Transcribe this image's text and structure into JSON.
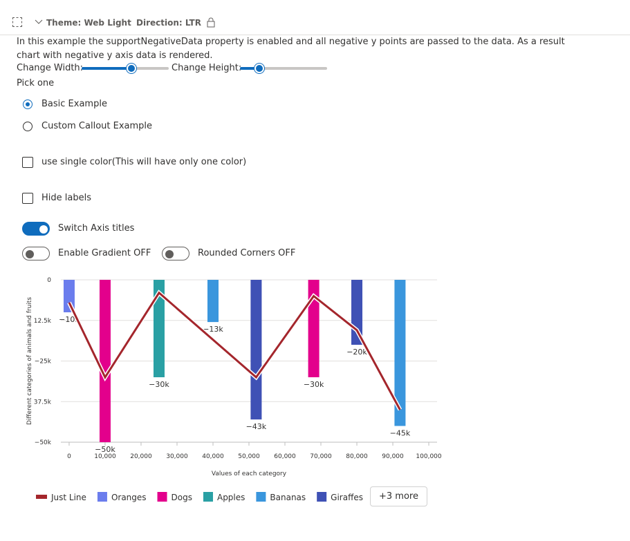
{
  "header": {
    "theme": "Theme: Web Light",
    "direction": "Direction: LTR"
  },
  "description": "In this example the supportNegativeData property is enabled and all negative y points are passed to the data. As a result chart with negative y axis data is rendered.",
  "controls": {
    "width_label": "Change Width:",
    "height_label": "Change Height:",
    "pick_label": "Pick one",
    "radios": [
      {
        "label": "Basic Example",
        "checked": true
      },
      {
        "label": "Custom Callout Example",
        "checked": false
      }
    ],
    "checkboxes": [
      {
        "label": "use single color(This will have only one color)",
        "checked": false
      },
      {
        "label": "Hide labels",
        "checked": false
      }
    ],
    "toggles": [
      {
        "label": "Switch Axis titles",
        "on": true
      },
      {
        "label": "Enable Gradient OFF",
        "on": false
      },
      {
        "label": "Rounded Corners OFF",
        "on": false
      }
    ]
  },
  "chart_data": {
    "type": "bar",
    "y_label": "Different categories of animals and fruits",
    "x_label": "Values of each category",
    "xlim": [
      -2300,
      102300
    ],
    "ylim": [
      -50000,
      0
    ],
    "xticks": [
      0,
      {
        "value": 10000,
        "label": "10,000"
      },
      {
        "value": 20000,
        "label": "20,000"
      },
      {
        "value": 30000,
        "label": "30,000"
      },
      {
        "value": 40000,
        "label": "40,000"
      },
      {
        "value": 50000,
        "label": "50,000"
      },
      {
        "value": 60000,
        "label": "60,000"
      },
      {
        "value": 70000,
        "label": "70,000"
      },
      {
        "value": 80000,
        "label": "80,000"
      },
      {
        "value": 90000,
        "label": "90,000"
      },
      {
        "value": 100000,
        "label": "100,000"
      }
    ],
    "yticks": [
      0,
      {
        "value": -12500,
        "label": "12.5k"
      },
      {
        "value": -25000,
        "label": "−25k"
      },
      {
        "value": -37500,
        "label": "37.5k"
      },
      {
        "value": -50000,
        "label": "−50k"
      }
    ],
    "grid": true,
    "series": [
      {
        "name": "Just Line",
        "type": "line",
        "color": "#a4262c",
        "x": [
          0,
          10000,
          25000,
          52000,
          68000,
          80000,
          92000
        ],
        "values": [
          -7000,
          -30000,
          -4000,
          -30000,
          -5000,
          -15500,
          -40000
        ]
      },
      {
        "name": "Oranges",
        "color": "#6b7ded",
        "x": [
          0
        ],
        "values": [
          -10000
        ],
        "value_labels": [
          "−10k"
        ]
      },
      {
        "name": "Dogs",
        "color": "#e3008c",
        "x": [
          10000,
          68000
        ],
        "values": [
          -50000,
          -30000
        ],
        "value_labels": [
          "−50k",
          "−30k"
        ]
      },
      {
        "name": "Apples",
        "color": "#2aa0a4",
        "x": [
          25000
        ],
        "values": [
          -30000
        ],
        "value_labels": [
          "−30k"
        ]
      },
      {
        "name": "Bananas",
        "color": "#3a96dd",
        "x": [
          40000,
          92000
        ],
        "values": [
          -13000,
          -45000
        ],
        "value_labels": [
          "−13k",
          "−45k"
        ]
      },
      {
        "name": "Giraffes",
        "color": "#3f51b5",
        "x": [
          52000,
          80000
        ],
        "values": [
          -43000,
          -20000
        ],
        "value_labels": [
          "−43k",
          "−20k"
        ]
      }
    ],
    "more_button": "+3 more"
  }
}
